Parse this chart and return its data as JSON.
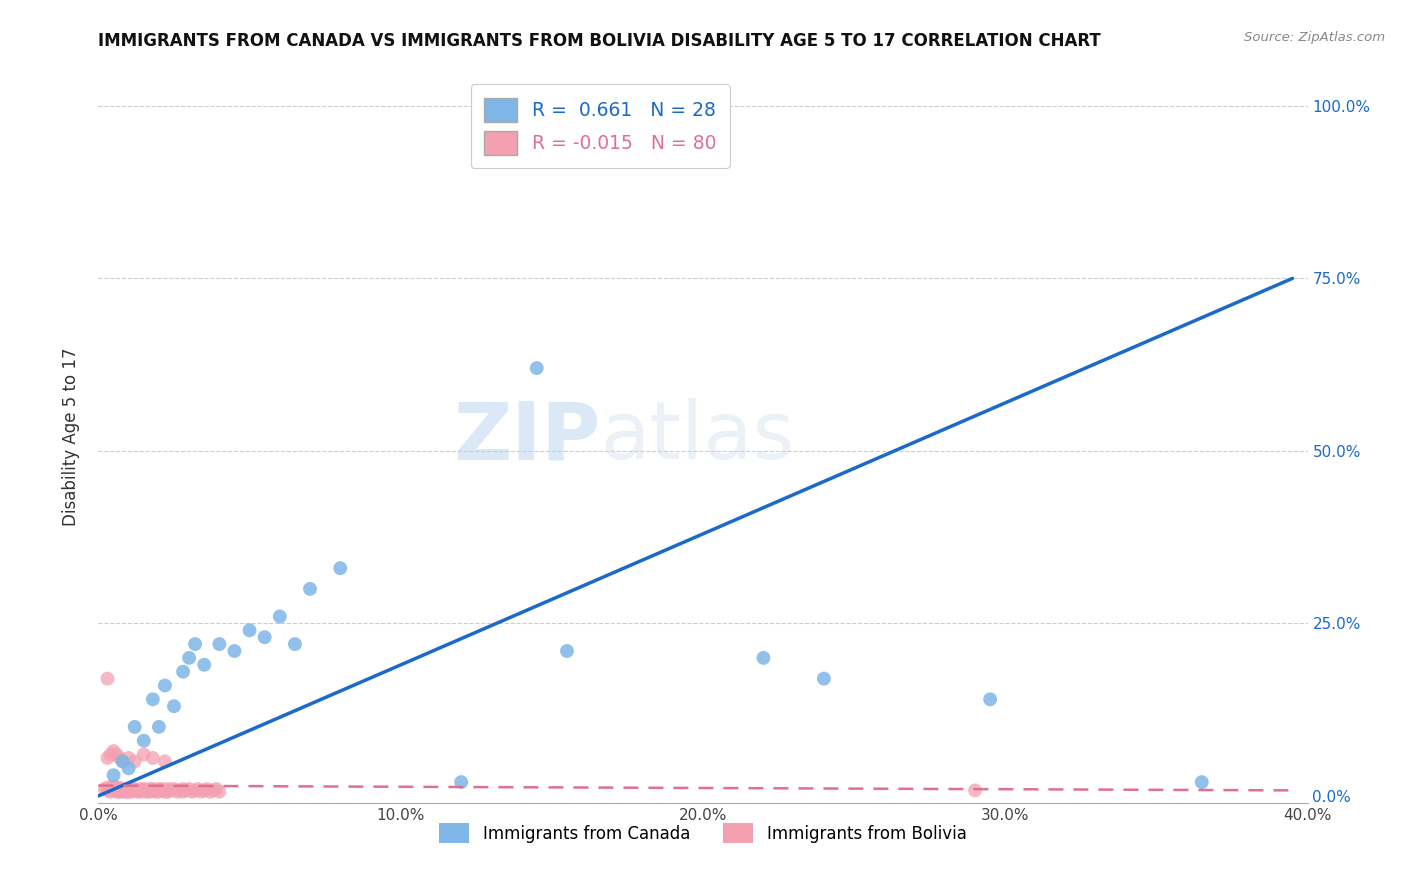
{
  "title": "IMMIGRANTS FROM CANADA VS IMMIGRANTS FROM BOLIVIA DISABILITY AGE 5 TO 17 CORRELATION CHART",
  "source": "Source: ZipAtlas.com",
  "ylabel": "Disability Age 5 to 17",
  "xlim": [
    0.0,
    0.4
  ],
  "ylim": [
    -0.01,
    1.05
  ],
  "yticks": [
    0.0,
    0.25,
    0.5,
    0.75,
    1.0
  ],
  "ytick_labels": [
    "0.0%",
    "25.0%",
    "50.0%",
    "75.0%",
    "100.0%"
  ],
  "xticks": [
    0.0,
    0.1,
    0.2,
    0.3,
    0.4
  ],
  "xtick_labels": [
    "0.0%",
    "10.0%",
    "20.0%",
    "30.0%",
    "40.0%"
  ],
  "canada_color": "#7EB6E8",
  "bolivia_color": "#F4A0B0",
  "canada_line_color": "#1B6AC9",
  "bolivia_line_color": "#E07090",
  "r_canada": 0.661,
  "n_canada": 28,
  "r_bolivia": -0.015,
  "n_bolivia": 80,
  "legend_label_canada": "Immigrants from Canada",
  "legend_label_bolivia": "Immigrants from Bolivia",
  "watermark_zip": "ZIP",
  "watermark_atlas": "atlas",
  "canada_line_x": [
    0.0,
    0.395
  ],
  "canada_line_y": [
    0.0,
    0.75
  ],
  "bolivia_line_x": [
    0.0,
    0.395
  ],
  "bolivia_line_y": [
    0.015,
    0.008
  ],
  "canada_points_x": [
    0.005,
    0.008,
    0.01,
    0.012,
    0.015,
    0.018,
    0.02,
    0.022,
    0.025,
    0.028,
    0.03,
    0.032,
    0.035,
    0.04,
    0.045,
    0.05,
    0.055,
    0.06,
    0.065,
    0.07,
    0.08,
    0.12,
    0.145,
    0.155,
    0.22,
    0.24,
    0.295,
    0.365
  ],
  "canada_points_y": [
    0.03,
    0.05,
    0.04,
    0.1,
    0.08,
    0.14,
    0.1,
    0.16,
    0.13,
    0.18,
    0.2,
    0.22,
    0.19,
    0.22,
    0.21,
    0.24,
    0.23,
    0.26,
    0.22,
    0.3,
    0.33,
    0.02,
    0.62,
    0.21,
    0.2,
    0.17,
    0.14,
    0.02
  ],
  "bolivia_points_x": [
    0.002,
    0.003,
    0.003,
    0.004,
    0.004,
    0.005,
    0.005,
    0.005,
    0.006,
    0.006,
    0.006,
    0.007,
    0.007,
    0.007,
    0.008,
    0.008,
    0.008,
    0.009,
    0.009,
    0.009,
    0.01,
    0.01,
    0.01,
    0.011,
    0.011,
    0.012,
    0.012,
    0.013,
    0.013,
    0.014,
    0.014,
    0.015,
    0.015,
    0.016,
    0.016,
    0.017,
    0.017,
    0.018,
    0.018,
    0.019,
    0.019,
    0.02,
    0.02,
    0.021,
    0.021,
    0.022,
    0.022,
    0.023,
    0.023,
    0.024,
    0.025,
    0.026,
    0.027,
    0.028,
    0.028,
    0.029,
    0.03,
    0.031,
    0.032,
    0.033,
    0.034,
    0.035,
    0.036,
    0.037,
    0.038,
    0.039,
    0.04,
    0.003,
    0.004,
    0.005,
    0.006,
    0.007,
    0.008,
    0.01,
    0.012,
    0.015,
    0.018,
    0.022,
    0.29,
    0.003
  ],
  "bolivia_points_y": [
    0.01,
    0.008,
    0.012,
    0.01,
    0.006,
    0.008,
    0.012,
    0.015,
    0.008,
    0.01,
    0.006,
    0.008,
    0.012,
    0.006,
    0.01,
    0.008,
    0.006,
    0.01,
    0.006,
    0.008,
    0.01,
    0.006,
    0.008,
    0.01,
    0.006,
    0.008,
    0.01,
    0.006,
    0.008,
    0.01,
    0.006,
    0.008,
    0.01,
    0.006,
    0.008,
    0.01,
    0.006,
    0.008,
    0.01,
    0.006,
    0.008,
    0.01,
    0.006,
    0.008,
    0.01,
    0.006,
    0.008,
    0.01,
    0.006,
    0.008,
    0.01,
    0.006,
    0.008,
    0.01,
    0.006,
    0.008,
    0.01,
    0.006,
    0.008,
    0.01,
    0.006,
    0.008,
    0.01,
    0.006,
    0.008,
    0.01,
    0.006,
    0.055,
    0.06,
    0.065,
    0.06,
    0.055,
    0.05,
    0.055,
    0.05,
    0.06,
    0.055,
    0.05,
    0.008,
    0.17
  ]
}
